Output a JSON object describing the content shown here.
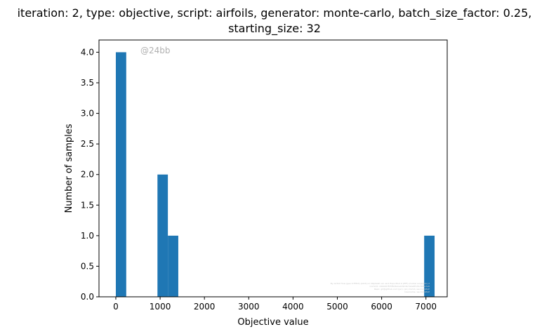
{
  "chart_data": {
    "type": "bar",
    "title_lines": [
      "iteration: 2, type: objective, script: airfoils, generator: monte-carlo, batch_size_factor: 0.25,",
      "starting_size: 32"
    ],
    "xlabel": "Objective value",
    "ylabel": "Number of samples",
    "xlim": [
      -380,
      7480
    ],
    "ylim": [
      0,
      4.2
    ],
    "xticks": [
      0,
      1000,
      2000,
      3000,
      4000,
      5000,
      6000,
      7000
    ],
    "xtick_labels": [
      "0",
      "1000",
      "2000",
      "3000",
      "4000",
      "5000",
      "6000",
      "7000"
    ],
    "yticks": [
      0.0,
      0.5,
      1.0,
      1.5,
      2.0,
      2.5,
      3.0,
      3.5,
      4.0
    ],
    "ytick_labels": [
      "0.0",
      "0.5",
      "1.0",
      "1.5",
      "2.0",
      "2.5",
      "3.0",
      "3.5",
      "4.0"
    ],
    "bins": [
      {
        "x0": 0,
        "x1": 235,
        "value": 4
      },
      {
        "x0": 940,
        "x1": 1175,
        "value": 2
      },
      {
        "x0": 1175,
        "x1": 1410,
        "value": 1
      },
      {
        "x0": 6960,
        "x1": 7195,
        "value": 1
      }
    ],
    "bar_color": "#1f77b4",
    "grid": false,
    "annotation": "@24bb",
    "fine_print": [
      "By Airfoil Flow (gen 0 ETRX) (binfo) in ObjAwell ver. and Expo Mod 0 (PTF) (model run(b)(dv) 2",
      "Commit: 24bb61f5f3f8c8a1e0d9c4b7a2e6f1d0c9b8a7e6",
      "Repo: git@github.com:(jer); (pn) ComA; we.ComMAP",
      "Username: we.ComMAP"
    ]
  }
}
